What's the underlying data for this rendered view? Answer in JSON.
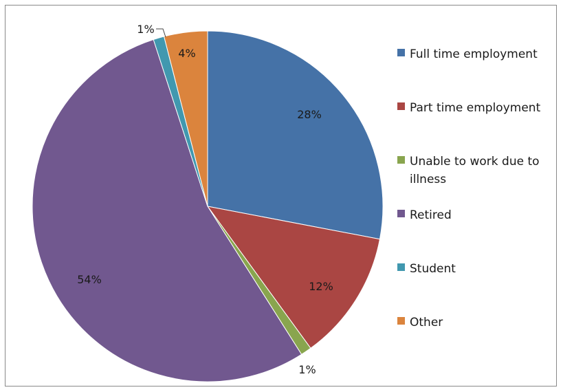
{
  "chart_data": {
    "type": "pie",
    "title": "",
    "slices": [
      {
        "name": "Full time employment",
        "value": 28,
        "label": "28%",
        "color": "#4572A7"
      },
      {
        "name": "Part time employment",
        "value": 12,
        "label": "12%",
        "color": "#AA4643"
      },
      {
        "name": "Unable to work due to illness",
        "value": 1,
        "label": "1%",
        "color": "#89A54E"
      },
      {
        "name": "Retired",
        "value": 54,
        "label": "54%",
        "color": "#71588F"
      },
      {
        "name": "Student",
        "value": 1,
        "label": "1%",
        "color": "#4198AF"
      },
      {
        "name": "Other",
        "value": 4,
        "label": "4%",
        "color": "#DB843D"
      }
    ],
    "legend_position": "right"
  }
}
